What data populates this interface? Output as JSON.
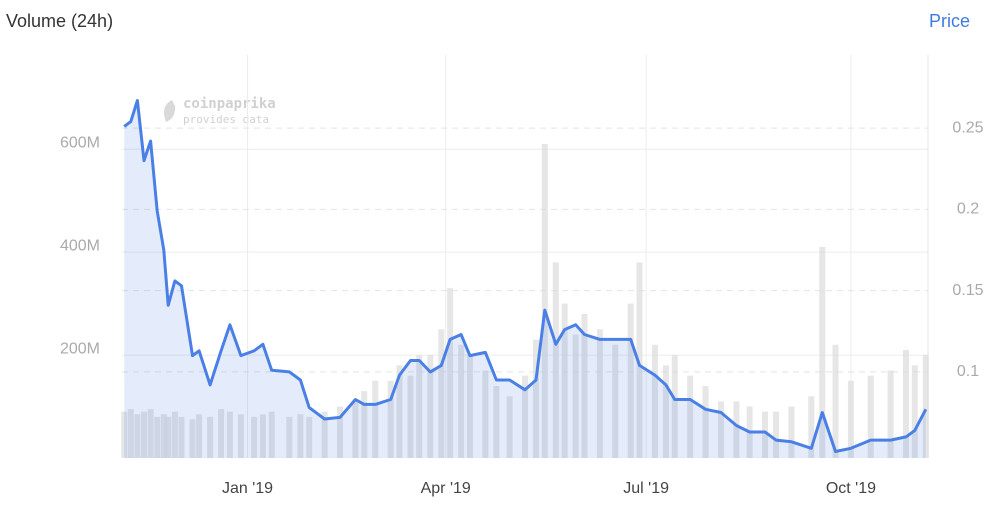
{
  "header": {
    "left_label": "Volume (24h)",
    "right_link": "Price"
  },
  "watermark": {
    "brand": "coinpaprika",
    "note": "provides data"
  },
  "chart_data": {
    "type": "combo",
    "x": [
      1,
      4,
      7,
      10,
      13,
      16,
      19,
      21,
      24,
      27,
      32,
      35,
      40,
      45,
      49,
      54,
      60,
      64,
      68,
      76,
      81,
      85,
      92,
      99,
      106,
      110,
      115,
      122,
      126,
      131,
      135,
      140,
      145,
      149,
      154,
      158,
      165,
      170,
      176,
      183,
      188,
      192,
      197,
      201,
      206,
      210,
      217,
      224,
      231,
      235,
      242,
      247,
      251,
      258,
      265,
      272,
      279,
      285,
      292,
      297,
      304,
      313,
      318,
      324,
      331,
      340,
      349,
      356,
      360,
      365
    ],
    "xlim": [
      0,
      366
    ],
    "xticks": [
      {
        "value": 57,
        "label": "Jan '19"
      },
      {
        "value": 147,
        "label": "Apr '19"
      },
      {
        "value": 238,
        "label": "Jul '19"
      },
      {
        "value": 331,
        "label": "Oct '19"
      }
    ],
    "ylim": [
      0,
      783000000.0
    ],
    "yticks": [
      {
        "value": 200000000.0,
        "label": "200M"
      },
      {
        "value": 400000000.0,
        "label": "400M"
      },
      {
        "value": 600000000.0,
        "label": "600M"
      }
    ],
    "y2lim": [
      0.047,
      0.295
    ],
    "y2ticks": [
      0.1,
      0.15,
      0.2,
      0.25
    ],
    "grid": true,
    "series": [
      {
        "name": "Volume (24h)",
        "type": "bar",
        "color": "#dcdcdc",
        "values": [
          90000000.0,
          95000000.0,
          85000000.0,
          90000000.0,
          95000000.0,
          80000000.0,
          85000000.0,
          80000000.0,
          90000000.0,
          80000000.0,
          75000000.0,
          85000000.0,
          80000000.0,
          95000000.0,
          90000000.0,
          85000000.0,
          80000000.0,
          85000000.0,
          90000000.0,
          80000000.0,
          85000000.0,
          80000000.0,
          90000000.0,
          100000000.0,
          110000000.0,
          130000000.0,
          150000000.0,
          150000000.0,
          180000000.0,
          160000000.0,
          200000000.0,
          200000000.0,
          250000000.0,
          330000000.0,
          220000000.0,
          200000000.0,
          170000000.0,
          140000000.0,
          120000000.0,
          160000000.0,
          230000000.0,
          610000000.0,
          380000000.0,
          300000000.0,
          240000000.0,
          280000000.0,
          250000000.0,
          220000000.0,
          300000000.0,
          380000000.0,
          220000000.0,
          180000000.0,
          200000000.0,
          160000000.0,
          140000000.0,
          110000000.0,
          110000000.0,
          100000000.0,
          90000000.0,
          90000000.0,
          100000000.0,
          120000000.0,
          410000000.0,
          220000000.0,
          150000000.0,
          160000000.0,
          170000000.0,
          210000000.0,
          180000000.0,
          200000000.0
        ]
      },
      {
        "name": "Price",
        "type": "line",
        "axis": "y2",
        "color": "#4a80e6",
        "values": [
          0.251,
          0.254,
          0.267,
          0.23,
          0.242,
          0.199,
          0.175,
          0.141,
          0.156,
          0.153,
          0.11,
          0.113,
          0.092,
          0.113,
          0.129,
          0.11,
          0.113,
          0.117,
          0.101,
          0.1,
          0.095,
          0.078,
          0.071,
          0.072,
          0.083,
          0.08,
          0.08,
          0.083,
          0.098,
          0.107,
          0.107,
          0.1,
          0.104,
          0.12,
          0.123,
          0.11,
          0.112,
          0.095,
          0.095,
          0.089,
          0.095,
          0.138,
          0.117,
          0.126,
          0.129,
          0.123,
          0.12,
          0.12,
          0.12,
          0.104,
          0.098,
          0.092,
          0.083,
          0.083,
          0.077,
          0.075,
          0.067,
          0.063,
          0.063,
          0.058,
          0.057,
          0.053,
          0.075,
          0.051,
          0.053,
          0.058,
          0.058,
          0.06,
          0.064,
          0.077
        ]
      }
    ]
  }
}
